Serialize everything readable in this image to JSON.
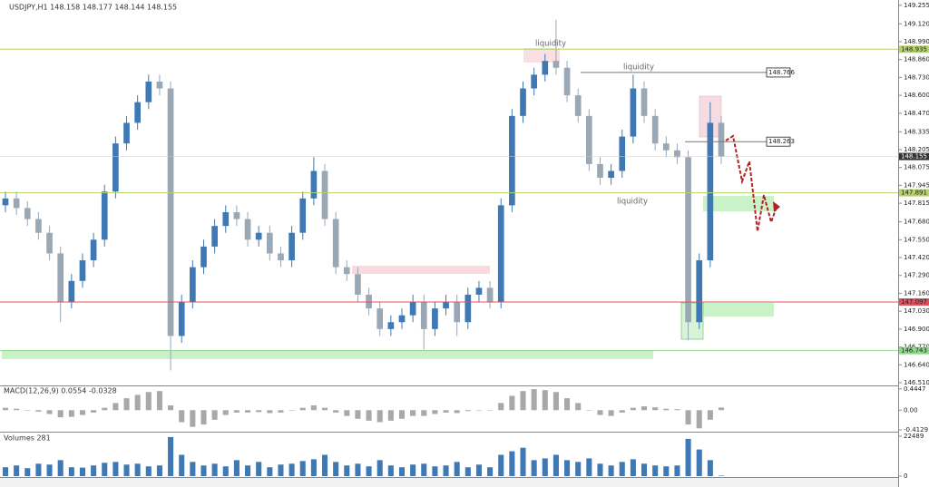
{
  "chart_data": [
    {
      "type": "candlestick",
      "title": "USDJPY,H1 148.158 148.177 148.144 148.155",
      "open": [
        147.8,
        147.85,
        147.78,
        147.7,
        147.6,
        147.45,
        147.1,
        147.25,
        147.4,
        147.55,
        147.9,
        148.25,
        148.4,
        148.55,
        148.7,
        148.65,
        146.85,
        147.1,
        147.35,
        147.5,
        147.65,
        147.75,
        147.7,
        147.55,
        147.6,
        147.45,
        147.4,
        147.6,
        147.85,
        148.05,
        147.7,
        147.35,
        147.3,
        147.15,
        147.05,
        146.9,
        146.95,
        147.0,
        147.1,
        146.9,
        147.05,
        147.1,
        146.95,
        147.15,
        147.2,
        147.1,
        147.8,
        148.45,
        148.65,
        148.75,
        148.85,
        148.8,
        148.6,
        148.45,
        148.1,
        148.0,
        148.05,
        148.3,
        148.65,
        148.45,
        148.25,
        148.2,
        148.15,
        146.95,
        147.4,
        148.4
      ],
      "high": [
        147.9,
        147.9,
        147.83,
        147.75,
        147.65,
        147.5,
        147.3,
        147.45,
        147.6,
        147.95,
        148.3,
        148.45,
        148.6,
        148.75,
        148.75,
        148.7,
        147.15,
        147.4,
        147.55,
        147.7,
        147.8,
        147.8,
        147.75,
        147.65,
        147.65,
        147.5,
        147.65,
        147.9,
        148.15,
        148.1,
        147.75,
        147.4,
        147.35,
        147.2,
        147.1,
        147.0,
        147.05,
        147.15,
        147.15,
        147.1,
        147.15,
        147.15,
        147.2,
        147.25,
        147.25,
        147.85,
        148.5,
        148.7,
        148.8,
        148.9,
        149.15,
        148.85,
        148.65,
        148.5,
        148.15,
        148.1,
        148.35,
        148.75,
        148.7,
        148.5,
        148.3,
        148.25,
        148.2,
        147.45,
        148.55,
        148.45
      ],
      "low": [
        147.75,
        147.73,
        147.65,
        147.55,
        147.4,
        146.95,
        147.05,
        147.2,
        147.35,
        147.5,
        147.85,
        148.2,
        148.35,
        148.5,
        148.6,
        146.6,
        146.8,
        147.05,
        147.3,
        147.45,
        147.6,
        147.65,
        147.5,
        147.5,
        147.4,
        147.35,
        147.35,
        147.55,
        147.8,
        147.65,
        147.3,
        147.25,
        147.1,
        147.0,
        146.85,
        146.85,
        146.9,
        146.95,
        146.75,
        146.85,
        147.0,
        146.85,
        146.9,
        147.1,
        147.05,
        147.05,
        147.75,
        148.4,
        148.6,
        148.7,
        148.75,
        148.55,
        148.4,
        148.05,
        147.95,
        147.95,
        148.0,
        148.25,
        148.4,
        148.2,
        148.15,
        148.1,
        146.82,
        146.9,
        147.35,
        148.1
      ],
      "close": [
        147.85,
        147.78,
        147.7,
        147.6,
        147.45,
        147.1,
        147.25,
        147.4,
        147.55,
        147.9,
        148.25,
        148.4,
        148.55,
        148.7,
        148.65,
        146.85,
        147.1,
        147.35,
        147.5,
        147.65,
        147.75,
        147.7,
        147.55,
        147.6,
        147.45,
        147.4,
        147.6,
        147.85,
        148.05,
        147.7,
        147.35,
        147.3,
        147.15,
        147.05,
        146.9,
        146.95,
        147.0,
        147.1,
        146.9,
        147.05,
        147.1,
        146.95,
        147.15,
        147.2,
        147.1,
        147.8,
        148.45,
        148.65,
        148.75,
        148.85,
        148.8,
        148.6,
        148.45,
        148.1,
        148.0,
        148.05,
        148.3,
        148.65,
        148.45,
        148.25,
        148.2,
        148.15,
        146.95,
        147.4,
        148.4,
        148.155
      ],
      "up_color": "#3f79b5",
      "down_color": "#9aa7b4",
      "ylim": [
        146.49,
        149.28
      ],
      "yticks": [
        149.255,
        {
          "value": 149.12,
          "label": "149.120"
        },
        {
          "value": 148.99,
          "label": "148.990"
        },
        {
          "value": 148.86,
          "label": "148.860"
        },
        {
          "value": 148.73,
          "label": "148.730"
        },
        {
          "value": 148.6,
          "label": "148.600"
        },
        {
          "value": 148.47,
          "label": "148.470"
        },
        148.335,
        148.205,
        148.075,
        147.945,
        147.815,
        {
          "value": 147.68,
          "label": "147.680"
        },
        {
          "value": 147.55,
          "label": "147.550"
        },
        {
          "value": 147.42,
          "label": "147.420"
        },
        {
          "value": 147.29,
          "label": "147.290"
        },
        {
          "value": 147.16,
          "label": "147.160"
        },
        {
          "value": 147.03,
          "label": "147.030"
        },
        {
          "value": 146.9,
          "label": "146.900"
        },
        {
          "value": 146.77,
          "label": "146.770"
        },
        {
          "value": 146.64,
          "label": "146.640"
        },
        {
          "value": 146.51,
          "label": "146.510"
        }
      ],
      "levels": [
        {
          "price": 148.935,
          "color": "#b6d36a"
        },
        {
          "price": 147.891,
          "color": "#b6d36a"
        },
        {
          "price": 147.097,
          "color": "#e0505a"
        },
        {
          "price": 146.743,
          "color": "#8fd88f"
        }
      ],
      "price_markers": [
        148.766,
        148.263
      ],
      "last_price": 148.155,
      "annotations": [
        "liquidity",
        "liquidity",
        "liquidity"
      ]
    },
    {
      "type": "bar",
      "title": "MACD(12,26,9) 0.0554 -0.0328",
      "values": [
        0.05,
        0.03,
        0.0,
        -0.03,
        -0.08,
        -0.15,
        -0.14,
        -0.1,
        -0.05,
        0.05,
        0.15,
        0.25,
        0.32,
        0.38,
        0.4,
        0.1,
        -0.25,
        -0.35,
        -0.3,
        -0.2,
        -0.1,
        -0.05,
        -0.05,
        -0.04,
        -0.06,
        -0.05,
        0.0,
        0.05,
        0.1,
        0.05,
        -0.05,
        -0.12,
        -0.18,
        -0.22,
        -0.25,
        -0.22,
        -0.18,
        -0.12,
        -0.12,
        -0.08,
        -0.05,
        -0.06,
        -0.02,
        0.0,
        0.0,
        0.15,
        0.3,
        0.4,
        0.44,
        0.42,
        0.38,
        0.25,
        0.15,
        0.0,
        -0.1,
        -0.12,
        -0.05,
        0.05,
        0.08,
        0.06,
        0.03,
        0.02,
        -0.3,
        -0.38,
        -0.2,
        0.0554
      ],
      "color": "#a8a8a8",
      "ylim": [
        -0.45,
        0.48
      ],
      "yticks": [
        0.4447,
        {
          "value": 0,
          "label": "0.00"
        },
        -0.4129
      ]
    },
    {
      "type": "bar",
      "title": "Volumes 281",
      "values": [
        5000,
        6000,
        4500,
        7000,
        6500,
        9000,
        5000,
        4800,
        6000,
        7500,
        8000,
        6500,
        7000,
        5500,
        6000,
        22000,
        12000,
        8000,
        6000,
        7000,
        5500,
        9000,
        6000,
        8000,
        5000,
        6500,
        7000,
        8500,
        9500,
        12000,
        8000,
        6000,
        7000,
        5500,
        9000,
        6000,
        5000,
        6500,
        7000,
        5500,
        6000,
        8000,
        5000,
        6500,
        5000,
        12000,
        14000,
        16000,
        9000,
        10000,
        12000,
        9000,
        8000,
        10000,
        7000,
        6000,
        8000,
        9500,
        7000,
        6000,
        5500,
        6000,
        21000,
        15000,
        9000,
        281
      ],
      "color": "#3f79b5",
      "ylim": [
        0,
        23500
      ],
      "yticks": [
        22489,
        0
      ]
    }
  ]
}
